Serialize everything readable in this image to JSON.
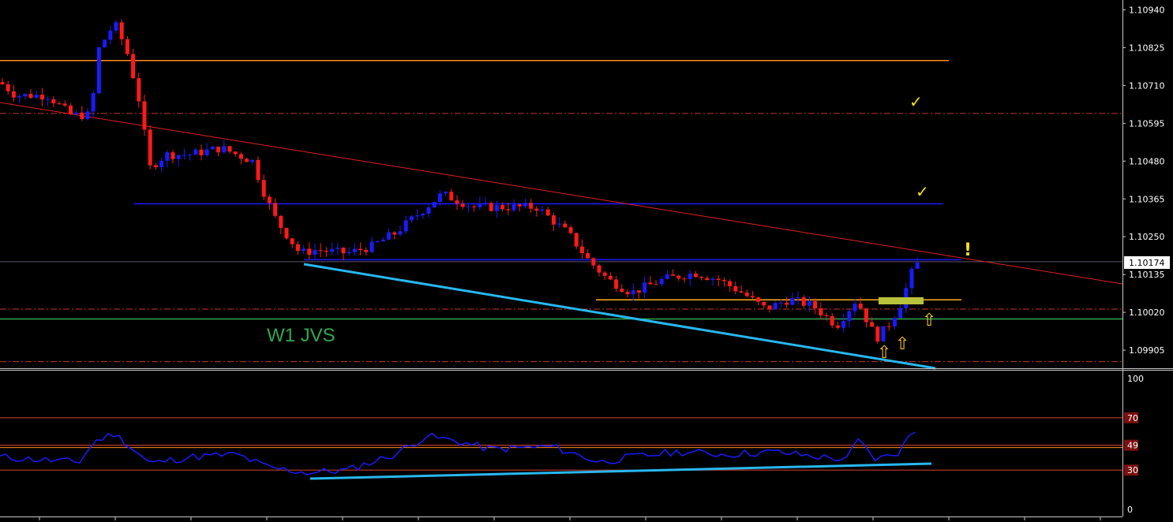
{
  "chart_data": [
    {
      "type": "candlestick",
      "panel": "price",
      "ylim": [
        1.0985,
        1.1097
      ],
      "price_ticks": [
        "1.10940",
        "1.10825",
        "1.10710",
        "1.10595",
        "1.10480",
        "1.10365",
        "1.10250",
        "1.10135",
        "1.10020",
        "1.09905"
      ],
      "current_price_label": "1.10174",
      "current_price": 1.10174,
      "annotation_text": "W1 JVS",
      "check_marks": [
        "✓",
        "✓"
      ],
      "exclamation": "!",
      "arrow_glyph": "⇧",
      "levels": [
        {
          "name": "orange-resistance",
          "price": 1.10786,
          "color": "#ff8c1a",
          "style": "solid"
        },
        {
          "name": "red-dashed-upper",
          "price": 1.10625,
          "color": "#c0392b",
          "style": "dashdot"
        },
        {
          "name": "blue-resistance",
          "price": 1.1035,
          "color": "#1a1aff",
          "style": "solid"
        },
        {
          "name": "blue-support",
          "price": 1.1018,
          "color": "#1a1aff",
          "style": "solid"
        },
        {
          "name": "orange-support",
          "price": 1.10058,
          "color": "#ffb01f",
          "style": "solid"
        },
        {
          "name": "red-dashed-mid",
          "price": 1.1003,
          "color": "#c0392b",
          "style": "dashdot"
        },
        {
          "name": "green-w1",
          "price": 1.1,
          "color": "#2fa84f",
          "style": "solid"
        },
        {
          "name": "red-dashed-lower",
          "price": 1.0987,
          "color": "#c0392b",
          "style": "dashdot"
        }
      ],
      "bull_color": "#1a1aff",
      "bear_color": "#ff1a1a",
      "trendline_color": "#e02020",
      "channel_color": "#27b8f0"
    },
    {
      "type": "line",
      "panel": "rsi",
      "ylim": [
        0,
        100
      ],
      "ticks": [
        "100",
        "70",
        "49",
        "30",
        "0"
      ],
      "levels": [
        70,
        49,
        30
      ],
      "line_color": "#1a1aff",
      "trend_color": "#27b8f0",
      "level_color": "#c0392b"
    }
  ]
}
